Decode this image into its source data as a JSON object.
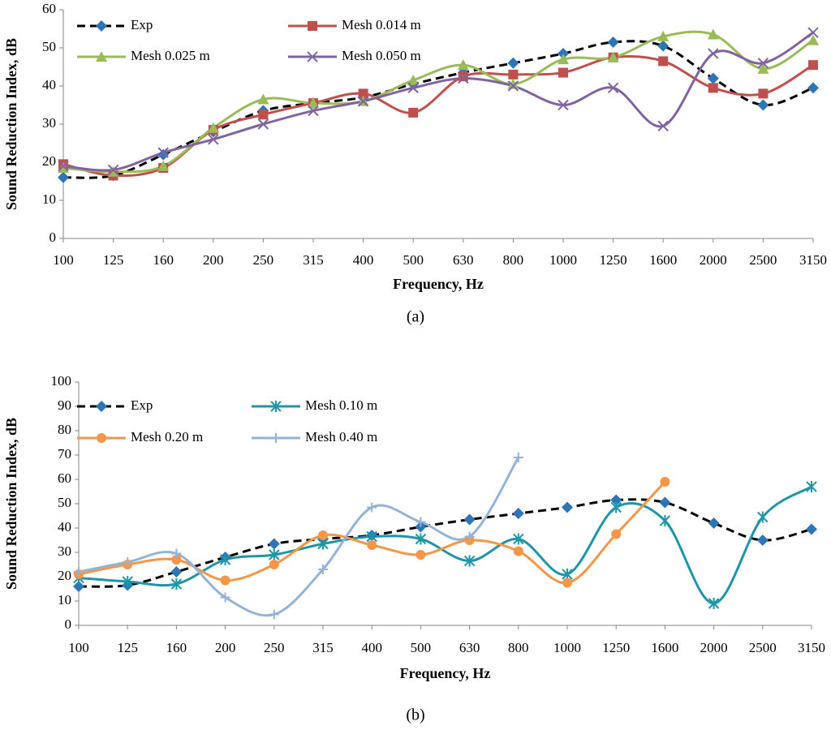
{
  "chart_data": [
    {
      "type": "line",
      "x_label": "Frequency, Hz",
      "y_label": "Sound Reduction Index, dB",
      "caption": "(a)",
      "categories": [
        "100",
        "125",
        "160",
        "200",
        "250",
        "315",
        "400",
        "500",
        "630",
        "800",
        "1000",
        "1250",
        "1600",
        "2000",
        "2500",
        "3150"
      ],
      "ylim": [
        0,
        60
      ],
      "yticks": [
        0,
        10,
        20,
        30,
        40,
        50,
        60
      ],
      "grid": false,
      "legend": "upper left",
      "smooth": true,
      "series": [
        {
          "name": "Exp",
          "color": "#2e75b6",
          "line_color": "#000000",
          "dash": true,
          "marker": "diamond",
          "values": [
            16,
            16.5,
            22,
            28,
            33.5,
            35.5,
            37,
            40.5,
            43.5,
            46,
            48.5,
            51.5,
            50.5,
            42,
            35,
            39.5
          ]
        },
        {
          "name": "Mesh 0.014 m",
          "color": "#c0504d",
          "line_color": "#c0504d",
          "dash": false,
          "marker": "square",
          "values": [
            19.5,
            16.5,
            18.5,
            28.5,
            32.5,
            35.5,
            38,
            33,
            42.5,
            43,
            43.5,
            47.5,
            46.5,
            39.5,
            38,
            45.5
          ]
        },
        {
          "name": "Mesh 0.025 m",
          "color": "#9bbb59",
          "line_color": "#9bbb59",
          "dash": false,
          "marker": "triangle",
          "values": [
            18.5,
            17.5,
            19,
            29,
            36.5,
            35.5,
            36,
            41.5,
            45.5,
            40.5,
            47,
            47.5,
            53,
            53.5,
            44.5,
            52
          ]
        },
        {
          "name": "Mesh 0.050 m",
          "color": "#8064a2",
          "line_color": "#8064a2",
          "dash": false,
          "marker": "x",
          "values": [
            19,
            18,
            22.5,
            26,
            30,
            33.5,
            36,
            39.5,
            42,
            40,
            35,
            39.5,
            29.5,
            48.5,
            46,
            54
          ]
        }
      ]
    },
    {
      "type": "line",
      "x_label": "Frequency, Hz",
      "y_label": "Sound Reduction Index, dB",
      "caption": "(b)",
      "categories": [
        "100",
        "125",
        "160",
        "200",
        "250",
        "315",
        "400",
        "500",
        "630",
        "800",
        "1000",
        "1250",
        "1600",
        "2000",
        "2500",
        "3150"
      ],
      "ylim": [
        0,
        100
      ],
      "yticks": [
        0,
        10,
        20,
        30,
        40,
        50,
        60,
        70,
        80,
        90,
        100
      ],
      "grid": false,
      "legend": "upper left",
      "smooth": true,
      "series": [
        {
          "name": "Exp",
          "color": "#2e75b6",
          "line_color": "#000000",
          "dash": true,
          "marker": "diamond",
          "values": [
            16,
            16.5,
            22,
            28,
            33.5,
            35.5,
            37,
            40.5,
            43.5,
            46,
            48.5,
            51.5,
            50.5,
            42,
            35,
            39.5
          ]
        },
        {
          "name": "Mesh 0.10 m",
          "color": "#1f96a8",
          "line_color": "#1f96a8",
          "dash": false,
          "marker": "star",
          "values": [
            19.5,
            18,
            17,
            27,
            29,
            33.5,
            36.5,
            35.5,
            26.5,
            35.5,
            21,
            48.5,
            43,
            9,
            44.5,
            57
          ]
        },
        {
          "name": "Mesh 0.20 m",
          "color": "#f79646",
          "line_color": "#f79646",
          "dash": false,
          "marker": "circle",
          "values": [
            21,
            25,
            27,
            18.5,
            25,
            37,
            33,
            29,
            35,
            30.5,
            17.5,
            37.5,
            59,
            null,
            null,
            null
          ]
        },
        {
          "name": "Mesh 0.40 m",
          "color": "#95b3d7",
          "line_color": "#95b3d7",
          "dash": false,
          "marker": "plus",
          "values": [
            22,
            26,
            29.5,
            11.5,
            4.5,
            23,
            48.5,
            42.5,
            36.5,
            69,
            null,
            null,
            null,
            null,
            null,
            null
          ]
        }
      ]
    }
  ]
}
